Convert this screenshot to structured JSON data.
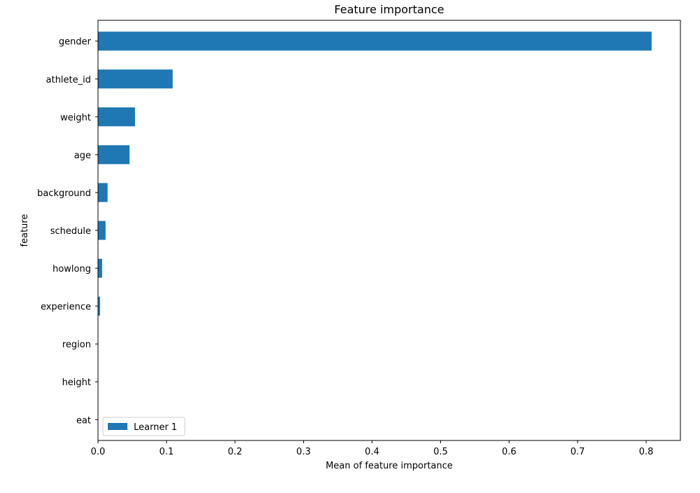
{
  "chart_data": {
    "type": "bar",
    "orientation": "horizontal",
    "title": "Feature importance",
    "xlabel": "Mean of feature importance",
    "ylabel": "feature",
    "xlim": [
      0,
      0.85
    ],
    "x_ticks": [
      0.0,
      0.1,
      0.2,
      0.3,
      0.4,
      0.5,
      0.6,
      0.7,
      0.8
    ],
    "x_tick_labels": [
      "0.0",
      "0.1",
      "0.2",
      "0.3",
      "0.4",
      "0.5",
      "0.6",
      "0.7",
      "0.8"
    ],
    "categories": [
      "gender",
      "athlete_id",
      "weight",
      "age",
      "background",
      "schedule",
      "howlong",
      "experience",
      "region",
      "height",
      "eat"
    ],
    "series": [
      {
        "name": "Learner 1",
        "color": "#1f77b4",
        "values": [
          0.808,
          0.109,
          0.054,
          0.046,
          0.014,
          0.011,
          0.006,
          0.003,
          0.0,
          0.0,
          0.0
        ]
      }
    ],
    "grid": false,
    "legend_position": "lower-left"
  }
}
